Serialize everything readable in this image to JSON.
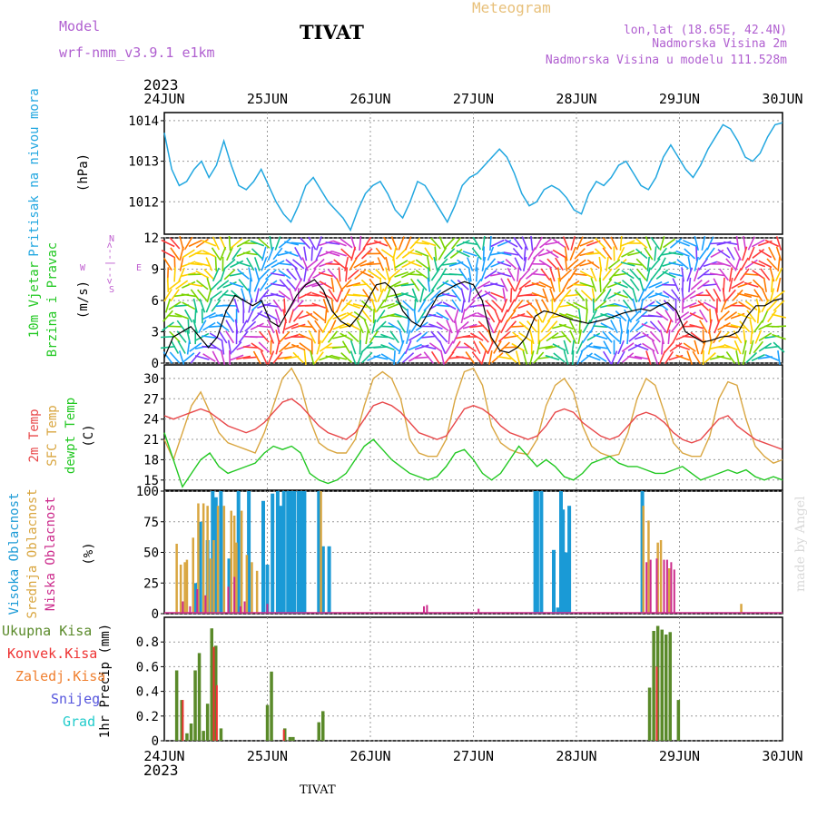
{
  "header": {
    "model_label": "Model",
    "model_name": "wrf-nmm_v3.9.1 e1km",
    "station": "TIVAT",
    "meteogram": "Meteogram",
    "lonlat": "lon,lat (18.65E, 42.4N)",
    "altitude": "Nadmorska Visina 2m",
    "model_altitude": "Nadmorska Visina u modelu 111.528m",
    "year_top": "2023",
    "year_bottom": "2023",
    "footer_station": "TIVAT",
    "credit": "made by Angel"
  },
  "colors": {
    "pressure": "#22a7e0",
    "temp2m": "#e8484a",
    "sfc": "#d9a640",
    "dew": "#22c822",
    "cloud_high": "#1a9ad6",
    "cloud_mid": "#d9a640",
    "cloud_low": "#cc2b8c",
    "rain_total": "#5a8a2a",
    "rain_conv": "#e33",
    "snow": "#5555dd",
    "hail": "#2cc"
  },
  "chart_data": [
    {
      "type": "line",
      "panel": "pressure",
      "ylabel": [
        "Pritisak na nivou mora",
        "(hPa)"
      ],
      "ylim": [
        1011.2,
        1014.2
      ],
      "yticks": [
        "1012",
        "1013",
        "1014"
      ],
      "x_ticks": [
        "24JUN",
        "25JUN",
        "26JUN",
        "27JUN",
        "28JUN",
        "29JUN",
        "30JUN"
      ],
      "series": [
        {
          "values": [
            1013.7,
            1012.8,
            1012.4,
            1012.5,
            1012.8,
            1013.0,
            1012.6,
            1012.9,
            1013.5,
            1012.9,
            1012.4,
            1012.3,
            1012.5,
            1012.8,
            1012.4,
            1012.0,
            1011.7,
            1011.5,
            1011.9,
            1012.4,
            1012.6,
            1012.3,
            1012.0,
            1011.8,
            1011.6,
            1011.3,
            1011.8,
            1012.2,
            1012.4,
            1012.5,
            1012.2,
            1011.8,
            1011.6,
            1012.0,
            1012.5,
            1012.4,
            1012.1,
            1011.8,
            1011.5,
            1011.9,
            1012.4,
            1012.6,
            1012.7,
            1012.9,
            1013.1,
            1013.3,
            1013.1,
            1012.7,
            1012.2,
            1011.9,
            1012.0,
            1012.3,
            1012.4,
            1012.3,
            1012.1,
            1011.8,
            1011.7,
            1012.2,
            1012.5,
            1012.4,
            1012.6,
            1012.9,
            1013.0,
            1012.7,
            1012.4,
            1012.3,
            1012.6,
            1013.1,
            1013.4,
            1013.1,
            1012.8,
            1012.6,
            1012.9,
            1013.3,
            1013.6,
            1013.9,
            1013.8,
            1013.5,
            1013.1,
            1013.0,
            1013.2,
            1013.6,
            1013.9,
            1013.95
          ]
        }
      ]
    },
    {
      "type": "line",
      "panel": "wind",
      "ylabel": [
        "10m Vjetar",
        "Brzina i Pravac",
        "(m/s)"
      ],
      "compass": {
        "n": "N",
        "w": "W",
        "e": "E",
        "s": "S",
        "arrow": "<--|-->"
      },
      "ylim": [
        0,
        12
      ],
      "yticks": [
        "0",
        "3",
        "6",
        "9",
        "12"
      ],
      "series": [
        {
          "name": "speed",
          "values": [
            0.5,
            2.5,
            3.0,
            3.5,
            2.5,
            1.5,
            2.5,
            5.0,
            6.5,
            6.0,
            5.5,
            6.0,
            4.0,
            3.5,
            5.0,
            6.5,
            7.5,
            8.0,
            7.0,
            5.0,
            4.0,
            3.5,
            4.5,
            6.0,
            7.5,
            7.7,
            7.0,
            5.0,
            4.0,
            3.5,
            5.0,
            6.5,
            7.0,
            7.5,
            7.8,
            7.5,
            6.0,
            2.5,
            1.2,
            1.0,
            1.5,
            2.5,
            4.5,
            5.0,
            4.8,
            4.5,
            4.2,
            4.0,
            3.8,
            4.0,
            4.2,
            4.5,
            4.8,
            5.0,
            5.2,
            5.0,
            5.5,
            5.8,
            5.0,
            3.0,
            2.5,
            2.0,
            2.2,
            2.5,
            2.6,
            3.0,
            4.5,
            5.5,
            5.5,
            6.0,
            6.2
          ]
        }
      ]
    },
    {
      "type": "line",
      "panel": "temperature",
      "ylabel": [
        "2m Temp",
        "SFC Temp",
        "dewpt Temp",
        "(C)"
      ],
      "ylim": [
        13.5,
        32
      ],
      "yticks": [
        "15",
        "18",
        "21",
        "24",
        "27",
        "30"
      ],
      "series": [
        {
          "name": "2m Temp",
          "values": [
            24.5,
            24.0,
            24.5,
            25.0,
            25.5,
            25.0,
            24.0,
            23.0,
            22.5,
            22.0,
            22.5,
            23.5,
            25.0,
            26.5,
            27.0,
            26.0,
            24.5,
            23.0,
            22.0,
            21.5,
            21.0,
            22.0,
            24.0,
            26.0,
            26.5,
            26.0,
            25.0,
            23.5,
            22.0,
            21.5,
            21.0,
            21.5,
            23.5,
            25.5,
            26.0,
            25.5,
            24.5,
            23.0,
            22.0,
            21.5,
            21.0,
            21.5,
            23.0,
            25.0,
            25.5,
            25.0,
            23.5,
            22.5,
            21.5,
            21.0,
            21.5,
            23.0,
            24.5,
            25.0,
            24.5,
            23.5,
            22.0,
            21.0,
            20.5,
            21.0,
            22.5,
            24.0,
            24.5,
            23.0,
            22.0,
            21.0,
            20.5,
            20.0,
            19.5
          ]
        },
        {
          "name": "SFC Temp",
          "values": [
            21.0,
            18.0,
            22.0,
            26.0,
            28.0,
            25.0,
            22.0,
            20.5,
            20.0,
            19.5,
            19.0,
            22.0,
            26.0,
            30.0,
            31.5,
            29.0,
            24.0,
            20.5,
            19.5,
            19.0,
            19.0,
            21.0,
            26.0,
            30.0,
            31.0,
            30.0,
            27.0,
            21.0,
            19.0,
            18.5,
            18.5,
            21.0,
            27.0,
            31.0,
            31.5,
            29.0,
            23.0,
            20.5,
            19.5,
            19.0,
            18.8,
            21.0,
            26.0,
            29.0,
            30.0,
            28.0,
            23.0,
            20.0,
            19.0,
            18.5,
            18.8,
            22.0,
            27.0,
            30.0,
            29.0,
            25.0,
            20.5,
            19.0,
            18.5,
            18.5,
            21.5,
            27.0,
            29.5,
            29.0,
            24.0,
            20.0,
            18.5,
            17.5,
            18.0
          ]
        },
        {
          "name": "dewpt Temp",
          "values": [
            22.0,
            18.0,
            14.0,
            16.0,
            18.0,
            19.0,
            17.0,
            16.0,
            16.5,
            17.0,
            17.5,
            19.0,
            20.0,
            19.5,
            20.0,
            19.0,
            16.0,
            15.0,
            14.5,
            15.0,
            16.0,
            18.0,
            20.0,
            21.0,
            19.5,
            18.0,
            17.0,
            16.0,
            15.5,
            15.0,
            15.5,
            17.0,
            19.0,
            19.5,
            18.0,
            16.0,
            15.0,
            16.0,
            18.0,
            20.0,
            18.5,
            17.0,
            18.0,
            17.0,
            15.5,
            15.0,
            16.0,
            17.5,
            18.0,
            18.5,
            17.5,
            17.0,
            17.0,
            16.5,
            16.0,
            16.0,
            16.5,
            17.0,
            16.0,
            15.0,
            15.5,
            16.0,
            16.5,
            16.0,
            16.5,
            15.5,
            15.0,
            15.5,
            15.0
          ]
        }
      ]
    },
    {
      "type": "bar",
      "panel": "clouds",
      "ylabel": [
        "Visoka Oblacnost",
        "Srednja Oblacnost",
        "Niska Oblacnost",
        "(%)"
      ],
      "ylim": [
        0,
        100
      ],
      "yticks": [
        "0",
        "25",
        "50",
        "75",
        "100"
      ],
      "series": [
        {
          "name": "Visoka Oblacnost",
          "values": [
            [
              0.3,
              25
            ],
            [
              0.35,
              75
            ],
            [
              0.42,
              60
            ],
            [
              0.47,
              100
            ],
            [
              0.5,
              95
            ],
            [
              0.55,
              100
            ],
            [
              0.63,
              45
            ],
            [
              0.72,
              100
            ],
            [
              0.82,
              100
            ],
            [
              0.96,
              92
            ],
            [
              1.0,
              40
            ],
            [
              1.05,
              98
            ],
            [
              1.1,
              100
            ],
            [
              1.13,
              88
            ],
            [
              1.16,
              100
            ],
            [
              1.2,
              100
            ],
            [
              1.23,
              100
            ],
            [
              1.26,
              100
            ],
            [
              1.3,
              100
            ],
            [
              1.33,
              100
            ],
            [
              1.36,
              100
            ],
            [
              1.5,
              100
            ],
            [
              1.54,
              55
            ],
            [
              1.6,
              55
            ],
            [
              3.6,
              100
            ],
            [
              3.62,
              100
            ],
            [
              3.66,
              100
            ],
            [
              3.78,
              52
            ],
            [
              3.82,
              5
            ],
            [
              3.85,
              100
            ],
            [
              3.87,
              85
            ],
            [
              3.9,
              50
            ],
            [
              3.93,
              88
            ],
            [
              4.64,
              100
            ]
          ]
        },
        {
          "name": "Srednja Oblacnost",
          "values": [
            [
              0.12,
              57
            ],
            [
              0.16,
              40
            ],
            [
              0.2,
              42
            ],
            [
              0.22,
              44
            ],
            [
              0.28,
              62
            ],
            [
              0.33,
              90
            ],
            [
              0.38,
              90
            ],
            [
              0.42,
              88
            ],
            [
              0.45,
              45
            ],
            [
              0.48,
              60
            ],
            [
              0.52,
              88
            ],
            [
              0.58,
              88
            ],
            [
              0.65,
              84
            ],
            [
              0.68,
              80
            ],
            [
              0.7,
              58
            ],
            [
              0.75,
              84
            ],
            [
              0.8,
              48
            ],
            [
              0.85,
              42
            ],
            [
              0.9,
              35
            ],
            [
              1.52,
              100
            ],
            [
              4.65,
              88
            ],
            [
              4.7,
              76
            ],
            [
              4.79,
              58
            ],
            [
              4.82,
              60
            ],
            [
              4.9,
              37
            ],
            [
              5.6,
              8
            ]
          ]
        },
        {
          "name": "Niska Oblacnost",
          "values": [
            [
              0.18,
              10
            ],
            [
              0.25,
              6
            ],
            [
              0.32,
              20
            ],
            [
              0.4,
              15
            ],
            [
              0.62,
              22
            ],
            [
              0.68,
              30
            ],
            [
              0.74,
              6
            ],
            [
              0.78,
              10
            ],
            [
              1.0,
              8
            ],
            [
              2.52,
              6
            ],
            [
              2.55,
              7
            ],
            [
              3.05,
              4
            ],
            [
              4.68,
              42
            ],
            [
              4.72,
              44
            ],
            [
              4.78,
              45
            ],
            [
              4.85,
              44
            ],
            [
              4.88,
              44
            ],
            [
              4.92,
              42
            ],
            [
              4.95,
              36
            ]
          ]
        }
      ]
    },
    {
      "type": "bar",
      "panel": "precip",
      "ylabel": [
        "1hr Precip (mm)"
      ],
      "legend": [
        "Ukupna Kisa",
        "Konvek.Kisa",
        "Zaledj.Kisa",
        "Snijeg",
        "Grad"
      ],
      "ylim": [
        0,
        1.0
      ],
      "yticks": [
        "0",
        "0.2",
        "0.4",
        "0.6",
        "0.8"
      ],
      "x_ticks": [
        "24JUN",
        "25JUN",
        "26JUN",
        "27JUN",
        "28JUN",
        "29JUN",
        "30JUN"
      ],
      "series": [
        {
          "name": "Ukupna Kisa",
          "values": [
            [
              0.12,
              0.57
            ],
            [
              0.17,
              0.33
            ],
            [
              0.22,
              0.06
            ],
            [
              0.26,
              0.14
            ],
            [
              0.3,
              0.57
            ],
            [
              0.34,
              0.71
            ],
            [
              0.38,
              0.08
            ],
            [
              0.42,
              0.3
            ],
            [
              0.46,
              0.91
            ],
            [
              0.5,
              0.77
            ],
            [
              0.55,
              0.1
            ],
            [
              1.0,
              0.29
            ],
            [
              1.04,
              0.56
            ],
            [
              1.17,
              0.1
            ],
            [
              1.22,
              0.03
            ],
            [
              1.25,
              0.03
            ],
            [
              1.5,
              0.15
            ],
            [
              1.54,
              0.24
            ],
            [
              4.71,
              0.43
            ],
            [
              4.75,
              0.89
            ],
            [
              4.79,
              0.93
            ],
            [
              4.83,
              0.9
            ],
            [
              4.87,
              0.86
            ],
            [
              4.91,
              0.88
            ],
            [
              4.99,
              0.33
            ]
          ]
        },
        {
          "name": "Konvek.Kisa",
          "values": [
            [
              0.18,
              0.33
            ],
            [
              0.48,
              0.76
            ],
            [
              0.51,
              0.45
            ],
            [
              1.16,
              0.09
            ],
            [
              4.78,
              0.6
            ]
          ]
        }
      ]
    }
  ]
}
